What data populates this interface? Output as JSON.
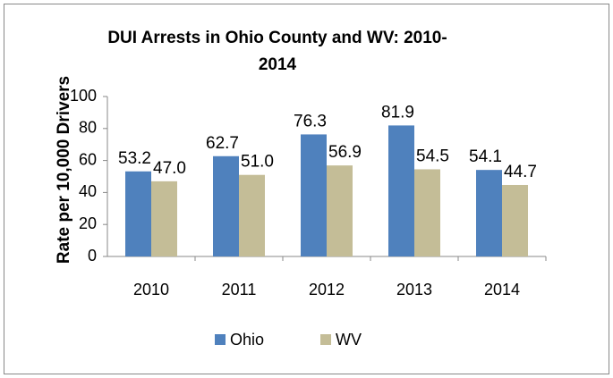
{
  "chart_data": {
    "type": "bar",
    "title": "DUI Arrests in Ohio County and WV: 2010-2014",
    "y_label": "Rate per 10,000 Drivers",
    "categories": [
      "2010",
      "2011",
      "2012",
      "2013",
      "2014"
    ],
    "series": [
      {
        "name": "Ohio",
        "color": "#4f81bd",
        "values": [
          53.2,
          62.7,
          76.3,
          81.9,
          54.1
        ],
        "value_labels": [
          "53.2",
          "62.7",
          "76.3",
          "81.9",
          "54.1"
        ]
      },
      {
        "name": "WV",
        "color": "#c4bd97",
        "values": [
          47.0,
          51.0,
          56.9,
          54.5,
          44.7
        ],
        "value_labels": [
          "47.0",
          "51.0",
          "56.9",
          "54.5",
          "44.7"
        ]
      }
    ],
    "ylim": [
      0,
      100
    ],
    "yticks": [
      0,
      20,
      40,
      60,
      80,
      100
    ],
    "grid": false,
    "legend": "bottom"
  }
}
